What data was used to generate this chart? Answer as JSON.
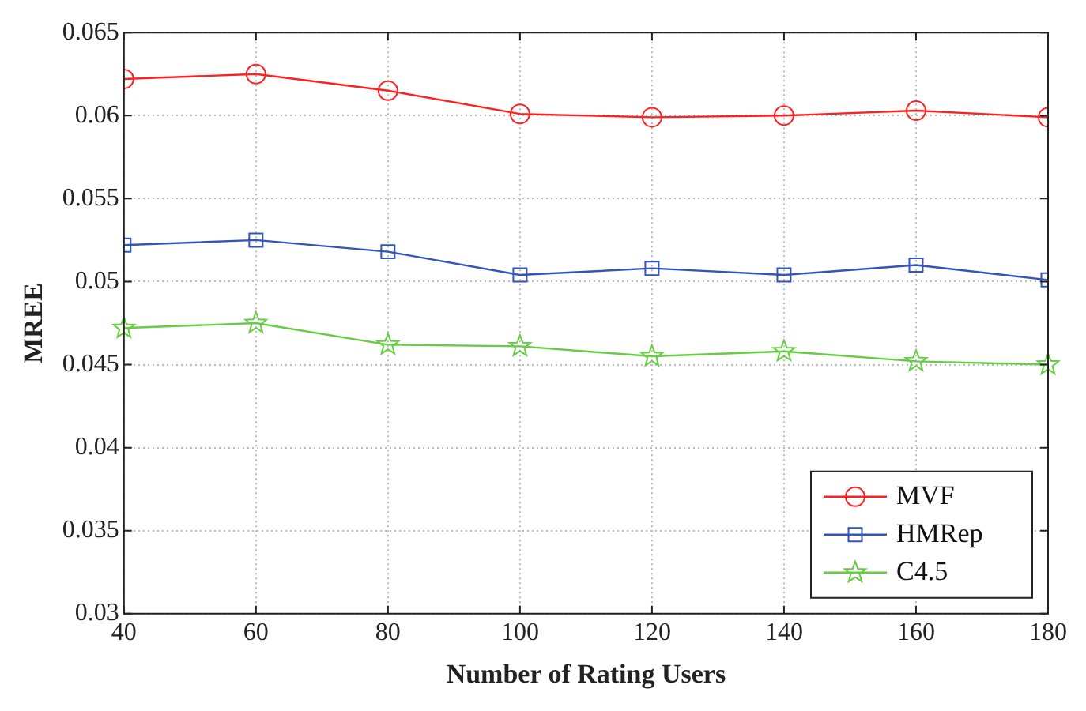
{
  "chart_data": {
    "type": "line",
    "xlabel": "Number of Rating Users",
    "ylabel": "MREE",
    "x": [
      40,
      60,
      80,
      100,
      120,
      140,
      160,
      180
    ],
    "series": [
      {
        "name": "MVF",
        "color": "#ff2020",
        "marker": "circle",
        "values": [
          0.0622,
          0.0625,
          0.0615,
          0.0601,
          0.0599,
          0.06,
          0.0603,
          0.0599
        ]
      },
      {
        "name": "HMRep",
        "color": "#3355bb",
        "marker": "square",
        "values": [
          0.0522,
          0.0525,
          0.0518,
          0.0504,
          0.0508,
          0.0504,
          0.051,
          0.0501
        ]
      },
      {
        "name": "C4.5",
        "color": "#66cc44",
        "marker": "star",
        "values": [
          0.0472,
          0.0475,
          0.0462,
          0.0461,
          0.0455,
          0.0458,
          0.0452,
          0.045
        ]
      }
    ],
    "xlim": [
      40,
      180
    ],
    "xticks": [
      40,
      60,
      80,
      100,
      120,
      140,
      160,
      180
    ],
    "ylim": [
      0.03,
      0.065
    ],
    "yticks": [
      {
        "value": 0.03,
        "label": "0.03"
      },
      {
        "value": 0.035,
        "label": "0.035"
      },
      {
        "value": 0.04,
        "label": "0.04"
      },
      {
        "value": 0.045,
        "label": "0.045"
      },
      {
        "value": 0.05,
        "label": "0.05"
      },
      {
        "value": 0.055,
        "label": "0.055"
      },
      {
        "value": 0.06,
        "label": "0.06"
      },
      {
        "value": 0.065,
        "label": "0.065"
      }
    ],
    "grid": true,
    "legend": "bottom right",
    "line_style": "solid"
  }
}
